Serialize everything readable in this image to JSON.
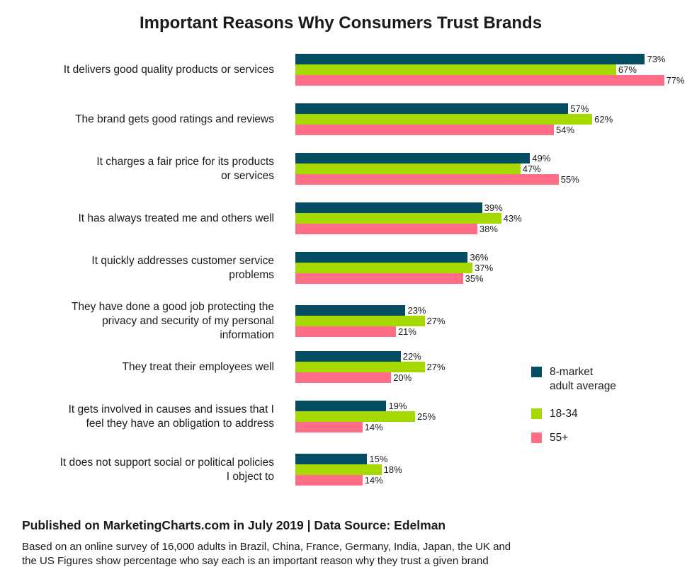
{
  "colors": {
    "avg": "#044d63",
    "young": "#a5d900",
    "old": "#ff6e86"
  },
  "chart_data": {
    "type": "bar",
    "orientation": "horizontal",
    "title": "Important Reasons Why Consumers Trust Brands",
    "categories": [
      [
        "It delivers good quality products or services"
      ],
      [
        "The brand gets good ratings and reviews"
      ],
      [
        "It charges a fair price for its products",
        "or services"
      ],
      [
        "It has always treated me and others well"
      ],
      [
        "It quickly addresses customer service",
        "problems"
      ],
      [
        "They have done a good job protecting the",
        "privacy and security of my personal",
        "information"
      ],
      [
        "They treat their employees well"
      ],
      [
        "It gets involved in causes and issues that I",
        "feel they have an obligation to address"
      ],
      [
        "It does not support social or political policies",
        "I object to"
      ]
    ],
    "series": [
      {
        "name": "8-market adult average",
        "legend_lines": [
          "8-market",
          "adult average"
        ],
        "values": [
          73,
          57,
          49,
          39,
          36,
          23,
          22,
          19,
          15
        ]
      },
      {
        "name": "18-34",
        "legend_lines": [
          "18-34"
        ],
        "values": [
          67,
          62,
          47,
          43,
          37,
          27,
          27,
          25,
          18
        ]
      },
      {
        "name": "55+",
        "legend_lines": [
          "55+"
        ],
        "values": [
          77,
          54,
          55,
          38,
          35,
          21,
          20,
          14,
          14
        ]
      }
    ],
    "value_suffix": "%",
    "xlim": [
      0,
      100
    ],
    "legend_position": "bottom-right",
    "grid": false
  },
  "footer": {
    "published": "Published on MarketingCharts.com in July 2019 | Data Source: Edelman",
    "note_lines": [
      "Based on an online survey of 16,000 adults in Brazil, China, France, Germany, India, Japan, the UK and",
      "the US Figures show percentage who say each is an important reason why they trust a given brand"
    ]
  }
}
